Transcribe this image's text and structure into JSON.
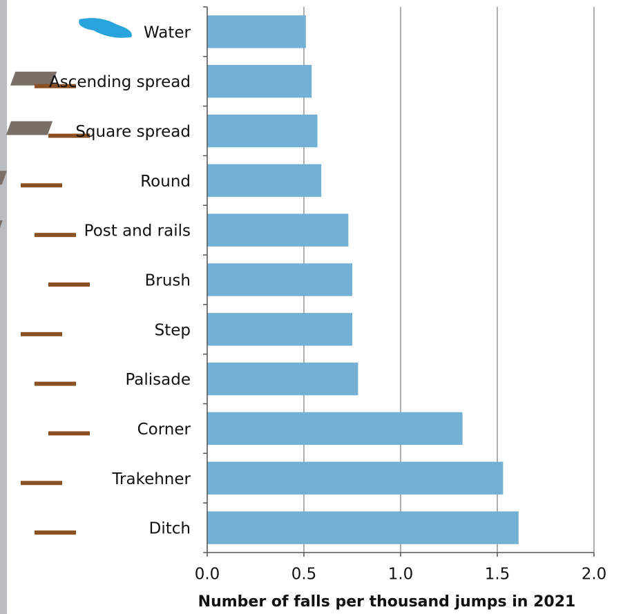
{
  "chart_data": {
    "type": "barh",
    "x_label": "Number of falls per thousand jumps in 2021",
    "categories": [
      "Water",
      "Ascending spread",
      "Square spread",
      "Round",
      "Post and rails",
      "Brush",
      "Step",
      "Palisade",
      "Corner",
      "Trakehner",
      "Ditch"
    ],
    "values": [
      0.51,
      0.54,
      0.57,
      0.59,
      0.73,
      0.75,
      0.75,
      0.78,
      1.32,
      1.53,
      1.61
    ],
    "color": "#72b0d6",
    "xlim": [
      0,
      2
    ],
    "xticks": [
      {
        "value": 0,
        "label": "0.0"
      },
      {
        "value": 0.5,
        "label": "0.5"
      },
      {
        "value": 1,
        "label": "1.0"
      },
      {
        "value": 1.5,
        "label": "1.5"
      },
      {
        "value": 2,
        "label": "2.0"
      }
    ],
    "grid": true
  }
}
